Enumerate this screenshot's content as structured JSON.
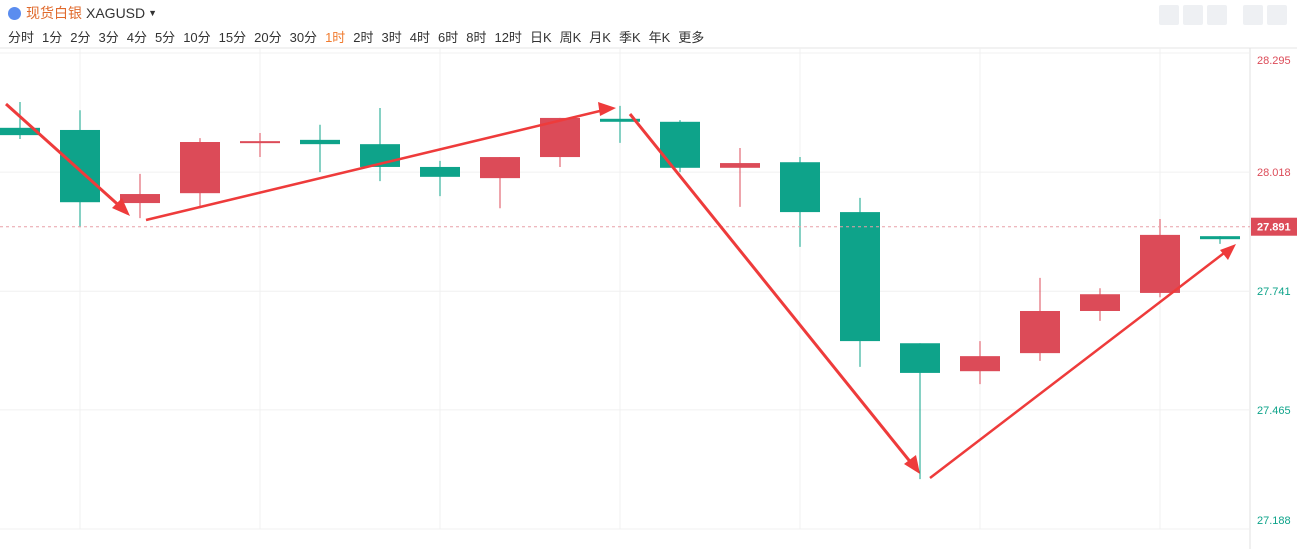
{
  "toolbar": {
    "title": "现货白银",
    "symbol": "XAGUSD",
    "periods": [
      "分时",
      "1分",
      "2分",
      "3分",
      "4分",
      "5分",
      "10分",
      "15分",
      "20分",
      "30分",
      "1时",
      "2时",
      "3时",
      "4时",
      "6时",
      "8时",
      "12时",
      "日K",
      "周K",
      "月K",
      "季K",
      "年K",
      "更多"
    ],
    "active": 10
  },
  "chart_data": {
    "type": "candlestick",
    "categories": [
      null,
      null,
      null,
      null,
      null,
      null,
      null,
      null,
      null,
      null,
      null,
      null,
      null,
      null,
      null,
      null,
      null,
      null,
      null,
      null,
      null
    ],
    "open": [
      28.121,
      28.116,
      27.946,
      27.969,
      28.086,
      28.093,
      28.083,
      28.03,
      28.004,
      28.053,
      28.142,
      28.135,
      28.028,
      28.041,
      27.925,
      27.62,
      27.555,
      27.597,
      27.695,
      27.737,
      27.869
    ],
    "high": [
      28.181,
      28.162,
      28.014,
      28.097,
      28.109,
      28.128,
      28.167,
      28.044,
      28.053,
      28.144,
      28.172,
      28.139,
      28.074,
      28.053,
      27.958,
      27.62,
      27.625,
      27.772,
      27.748,
      27.909,
      27.869
    ],
    "low": [
      28.095,
      27.89,
      27.911,
      27.934,
      28.053,
      28.018,
      27.997,
      27.962,
      27.934,
      28.03,
      28.086,
      28.018,
      27.937,
      27.844,
      27.565,
      27.304,
      27.525,
      27.579,
      27.672,
      27.727,
      27.851
    ],
    "close": [
      28.104,
      27.948,
      27.967,
      28.088,
      28.09,
      28.083,
      28.03,
      28.007,
      28.053,
      28.144,
      28.135,
      28.028,
      28.039,
      27.925,
      27.625,
      27.551,
      27.59,
      27.695,
      27.734,
      27.872,
      27.862
    ],
    "up_color": "#dc4b58",
    "down_color": "#0ea38a",
    "ylim": [
      27.188,
      28.295
    ],
    "yticks": [
      28.295,
      28.018,
      27.741,
      27.465,
      27.188
    ],
    "last_price": 27.891,
    "grid": true
  }
}
